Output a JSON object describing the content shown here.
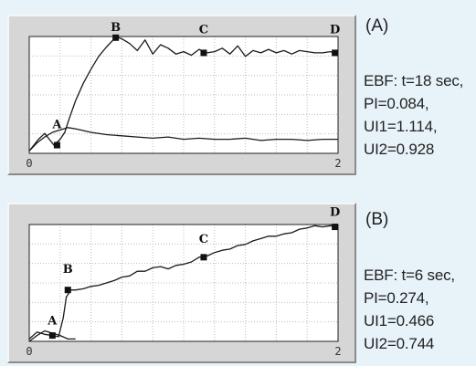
{
  "panels": [
    {
      "id": "A",
      "tag": "(A)",
      "stats": [
        "EBF: t=18 sec,",
        "PI=0.084,",
        "UI1=1.114,",
        "UI2=0.928"
      ]
    },
    {
      "id": "B",
      "tag": "(B)",
      "stats": [
        "EBF: t=6 sec,",
        "PI=0.274,",
        "UI1=0.466",
        "UI2=0.744"
      ]
    }
  ],
  "chart_data": [
    {
      "type": "line",
      "x_ticks": [
        "0",
        "2"
      ],
      "xlim": [
        0,
        2
      ],
      "ylim": [
        0,
        1
      ],
      "grid": true,
      "series": [
        {
          "x": [
            0,
            0.06,
            0.1,
            0.13,
            0.16,
            0.2,
            0.23,
            0.26,
            0.3,
            0.35,
            0.4,
            0.45,
            0.5,
            0.55,
            0.58,
            0.6,
            0.65,
            0.7,
            0.75,
            0.8,
            0.85,
            0.9,
            0.95,
            1.0,
            1.05,
            1.1,
            1.15,
            1.2,
            1.25,
            1.3,
            1.35,
            1.4,
            1.45,
            1.5,
            1.55,
            1.6,
            1.65,
            1.7,
            1.75,
            1.8,
            1.85,
            1.9,
            1.95,
            2.0
          ],
          "y": [
            0.02,
            0.12,
            0.17,
            0.12,
            0.07,
            0.12,
            0.18,
            0.3,
            0.45,
            0.6,
            0.72,
            0.83,
            0.91,
            0.98,
            0.99,
            0.98,
            0.94,
            0.88,
            0.97,
            0.85,
            0.93,
            0.9,
            0.85,
            0.87,
            0.84,
            0.89,
            0.86,
            0.87,
            0.9,
            0.85,
            0.92,
            0.83,
            0.88,
            0.86,
            0.89,
            0.86,
            0.88,
            0.85,
            0.88,
            0.87,
            0.86,
            0.86,
            0.87,
            0.85
          ]
        },
        {
          "x": [
            0,
            0.05,
            0.1,
            0.15,
            0.2,
            0.25,
            0.3,
            0.4,
            0.5,
            0.6,
            0.7,
            0.8,
            0.9,
            1.0,
            1.1,
            1.2,
            1.3,
            1.4,
            1.5,
            1.6,
            1.7,
            1.8,
            1.9,
            2.0
          ],
          "y": [
            0.02,
            0.09,
            0.14,
            0.18,
            0.2,
            0.22,
            0.21,
            0.18,
            0.16,
            0.15,
            0.14,
            0.13,
            0.14,
            0.12,
            0.13,
            0.12,
            0.12,
            0.13,
            0.11,
            0.12,
            0.12,
            0.11,
            0.12,
            0.12
          ]
        }
      ],
      "markers": [
        {
          "label": "A",
          "x": 0.18,
          "y": 0.07,
          "label_y": 0.2
        },
        {
          "label": "B",
          "x": 0.56,
          "y": 0.99,
          "label_y": 1.03
        },
        {
          "label": "C",
          "x": 1.13,
          "y": 0.86,
          "label_y": 1.01
        },
        {
          "label": "D",
          "x": 1.98,
          "y": 0.86,
          "label_y": 1.01
        }
      ]
    },
    {
      "type": "line",
      "x_ticks": [
        "0",
        "2"
      ],
      "xlim": [
        0,
        2
      ],
      "ylim": [
        0,
        1
      ],
      "grid": true,
      "series": [
        {
          "x": [
            0,
            0.05,
            0.1,
            0.15,
            0.19,
            0.22,
            0.24,
            0.27,
            0.3,
            0.35,
            0.4,
            0.45,
            0.5,
            0.55,
            0.6,
            0.65,
            0.7,
            0.75,
            0.8,
            0.85,
            0.9,
            0.95,
            1.0,
            1.05,
            1.1,
            1.15,
            1.2,
            1.25,
            1.3,
            1.35,
            1.4,
            1.45,
            1.5,
            1.55,
            1.6,
            1.65,
            1.7,
            1.75,
            1.8,
            1.85,
            1.9,
            1.95,
            2.0
          ],
          "y": [
            0.02,
            0.08,
            0.06,
            0.05,
            0.04,
            0.2,
            0.38,
            0.44,
            0.44,
            0.45,
            0.47,
            0.48,
            0.5,
            0.52,
            0.55,
            0.56,
            0.6,
            0.6,
            0.63,
            0.64,
            0.62,
            0.65,
            0.66,
            0.68,
            0.72,
            0.73,
            0.76,
            0.78,
            0.79,
            0.82,
            0.83,
            0.86,
            0.88,
            0.9,
            0.9,
            0.92,
            0.93,
            0.96,
            0.97,
            0.99,
            0.98,
            0.99,
            0.98
          ]
        },
        {
          "x": [
            0,
            0.05,
            0.1,
            0.15,
            0.2,
            0.25,
            0.3
          ],
          "y": [
            0.0,
            0.05,
            0.09,
            0.07,
            0.05,
            0.02,
            0.02
          ]
        }
      ],
      "markers": [
        {
          "label": "A",
          "x": 0.15,
          "y": 0.05,
          "label_y": 0.13
        },
        {
          "label": "B",
          "x": 0.25,
          "y": 0.44,
          "label_y": 0.57
        },
        {
          "label": "C",
          "x": 1.13,
          "y": 0.72,
          "label_y": 0.83
        },
        {
          "label": "D",
          "x": 1.98,
          "y": 0.98,
          "label_y": 1.06
        }
      ]
    }
  ]
}
